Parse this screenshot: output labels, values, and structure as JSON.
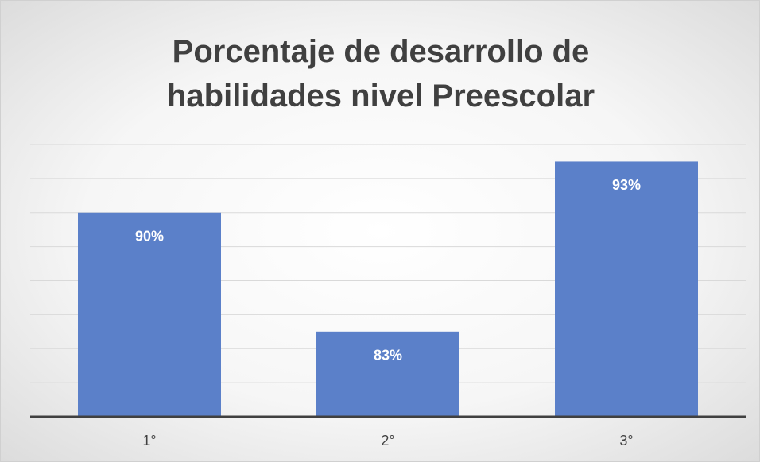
{
  "chart_data": {
    "type": "bar",
    "title": "Porcentaje de desarrollo de habilidades nivel Preescolar",
    "categories": [
      "1°",
      "2°",
      "3°"
    ],
    "values": [
      90,
      83,
      93
    ],
    "value_labels": [
      "90%",
      "83%",
      "93%"
    ],
    "color": "#5b80c9",
    "ylim": [
      78,
      94
    ],
    "yticks": [
      78,
      80,
      82,
      84,
      86,
      88,
      90,
      92,
      94
    ],
    "grid": true
  }
}
